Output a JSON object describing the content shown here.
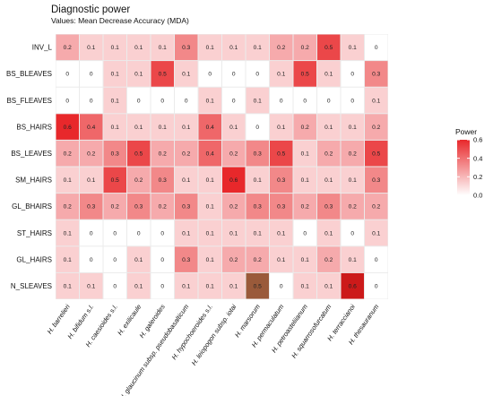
{
  "chart_data": {
    "type": "heatmap",
    "title": "Diagnostic power",
    "subtitle": "Values: Mean Decrease Accuracy (MDA)",
    "xlabel": "",
    "ylabel": "",
    "rows": [
      "INV_L",
      "BS_BLEAVES",
      "BS_FLEAVES",
      "BS_HAIRS",
      "BS_LEAVES",
      "SM_HAIRS",
      "GL_BHAIRS",
      "ST_HAIRS",
      "GL_HAIRS",
      "N_SLEAVES"
    ],
    "columns": [
      "H. barrelieri",
      "H. bifidum s.l.",
      "H. caesioides s.l.",
      "H. exilicaule",
      "H. galeroides",
      "H. glaucinum subsp. pseudobasalticum",
      "H. hypochoeroides s.l.",
      "H. leiopogon subsp. iotai",
      "H. marsorum",
      "H. permaculatum",
      "H. petroasteliianum",
      "H. squarrosofurcatum",
      "H. terraccianoi",
      "H. thesauranum"
    ],
    "values": [
      [
        0.2,
        0.1,
        0.1,
        0.1,
        0.1,
        0.3,
        0.1,
        0.1,
        0.1,
        0.2,
        0.2,
        0.5,
        0.1,
        0
      ],
      [
        0,
        0,
        0.1,
        0.1,
        0.5,
        0.1,
        0,
        0,
        0,
        0.1,
        0.5,
        0.1,
        0,
        0.3
      ],
      [
        0,
        0,
        0.1,
        0,
        0,
        0,
        0.1,
        0,
        0.1,
        0,
        0,
        0,
        0,
        0.1
      ],
      [
        0.6,
        0.4,
        0.1,
        0.1,
        0.1,
        0.1,
        0.4,
        0.1,
        0,
        0.1,
        0.2,
        0.1,
        0.1,
        0.2
      ],
      [
        0.2,
        0.2,
        0.3,
        0.5,
        0.2,
        0.2,
        0.4,
        0.2,
        0.3,
        0.5,
        0.1,
        0.2,
        0.2,
        0.5
      ],
      [
        0.1,
        0.1,
        0.5,
        0.2,
        0.3,
        0.1,
        0.1,
        0.6,
        0.1,
        0.3,
        0.1,
        0.1,
        0.1,
        0.3
      ],
      [
        0.2,
        0.3,
        0.2,
        0.3,
        0.2,
        0.3,
        0.1,
        0.2,
        0.3,
        0.3,
        0.2,
        0.3,
        0.2,
        0.2
      ],
      [
        0.1,
        0,
        0,
        0,
        0,
        0.1,
        0.1,
        0.1,
        0.1,
        0.1,
        0,
        0.1,
        0,
        0.1
      ],
      [
        0.1,
        0,
        0,
        0.1,
        0,
        0.3,
        0.1,
        0.2,
        0.2,
        0.1,
        0.1,
        0.2,
        0.1,
        0
      ],
      [
        0.1,
        0.1,
        0,
        0.1,
        0,
        0.1,
        0.1,
        0.1,
        0.5,
        0,
        0.1,
        0.1,
        0.6,
        0
      ]
    ],
    "legend": {
      "title": "Power",
      "ticks": [
        0.6,
        0.4,
        0.2,
        0.0
      ],
      "tick_labels": [
        "0.6",
        "0.4",
        "0.2",
        "0.0"
      ],
      "range": [
        0,
        0.6
      ],
      "placement": "right"
    },
    "colors": {
      "low": "#ffffff",
      "high": "#e8282b",
      "background": "#ebebeb",
      "grid": "#ffffff",
      "highlight_marsorum": "#9a5a3a",
      "highlight_terraccianoi": "#cc1a1a"
    }
  }
}
